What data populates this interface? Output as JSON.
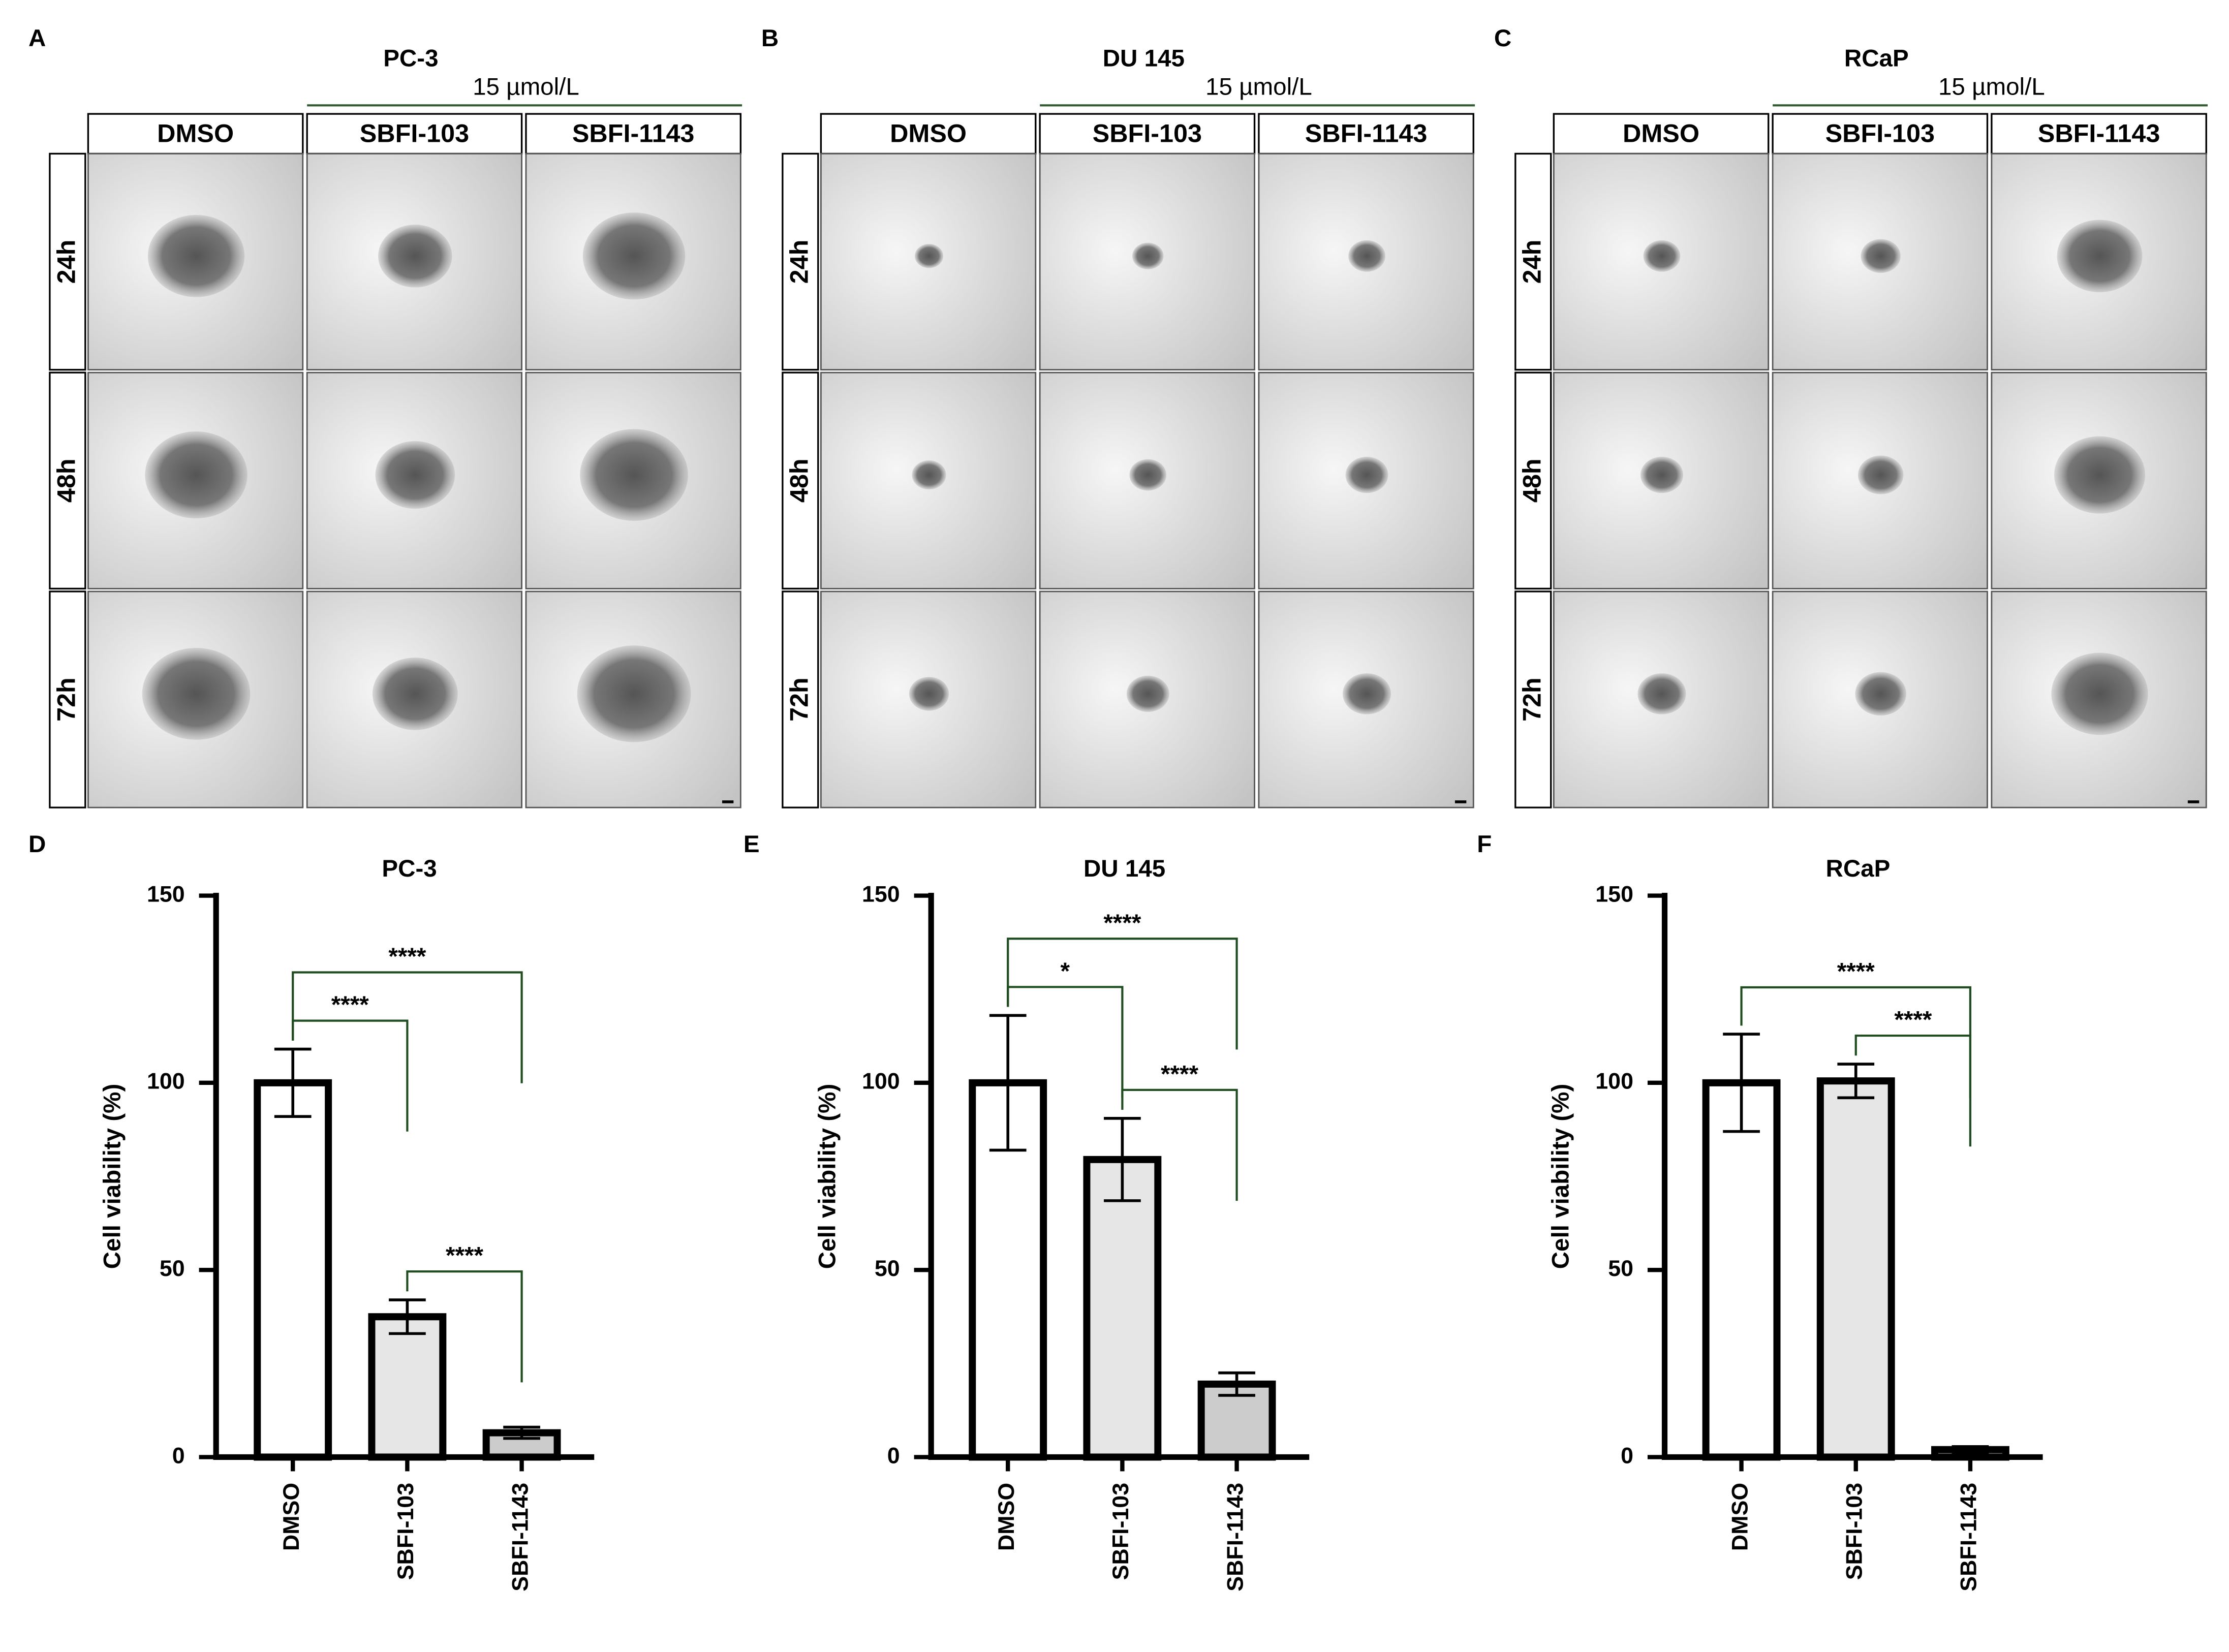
{
  "panels": [
    {
      "letter": "A",
      "cell_line": "PC-3",
      "concentration": "15 µmol/L",
      "columns": [
        "DMSO",
        "SBFI-103",
        "SBFI-1143"
      ],
      "rows": [
        "24h",
        "48h",
        "72h"
      ]
    },
    {
      "letter": "B",
      "cell_line": "DU 145",
      "concentration": "15 µmol/L",
      "columns": [
        "DMSO",
        "SBFI-103",
        "SBFI-1143"
      ],
      "rows": [
        "24h",
        "48h",
        "72h"
      ]
    },
    {
      "letter": "C",
      "cell_line": "RCaP",
      "concentration": "15 µmol/L",
      "columns": [
        "DMSO",
        "SBFI-103",
        "SBFI-1143"
      ],
      "rows": [
        "24h",
        "48h",
        "72h"
      ]
    }
  ],
  "chart_data": [
    {
      "type": "bar",
      "letter": "D",
      "title": "PC-3",
      "ylabel": "Cell viability (%)",
      "categories": [
        "DMSO",
        "SBFI-103",
        "SBFI-1143"
      ],
      "values": [
        100,
        37.5,
        6.5
      ],
      "errors": [
        9,
        4.5,
        1.5
      ],
      "colors": [
        "#ffffff",
        "#e6e6e6",
        "#cccccc"
      ],
      "ylim": [
        0,
        150
      ],
      "yticks": [
        0,
        50,
        100,
        150
      ],
      "significance": [
        {
          "pair": [
            0,
            1
          ],
          "label": "****"
        },
        {
          "pair": [
            1,
            2
          ],
          "label": "****"
        },
        {
          "pair": [
            0,
            2
          ],
          "label": "****"
        }
      ]
    },
    {
      "type": "bar",
      "letter": "E",
      "title": "DU 145",
      "ylabel": "Cell viability (%)",
      "categories": [
        "DMSO",
        "SBFI-103",
        "SBFI-1143"
      ],
      "values": [
        100,
        79.5,
        19.5
      ],
      "errors": [
        18,
        11,
        3
      ],
      "colors": [
        "#ffffff",
        "#e6e6e6",
        "#cccccc"
      ],
      "ylim": [
        0,
        150
      ],
      "yticks": [
        0,
        50,
        100,
        150
      ],
      "significance": [
        {
          "pair": [
            0,
            1
          ],
          "label": "*"
        },
        {
          "pair": [
            1,
            2
          ],
          "label": "****"
        },
        {
          "pair": [
            0,
            2
          ],
          "label": "****"
        }
      ]
    },
    {
      "type": "bar",
      "letter": "F",
      "title": "RCaP",
      "ylabel": "Cell viability (%)",
      "categories": [
        "DMSO",
        "SBFI-103",
        "SBFI-1143"
      ],
      "values": [
        100,
        100.5,
        2
      ],
      "errors": [
        13,
        4.5,
        0.8
      ],
      "colors": [
        "#ffffff",
        "#e6e6e6",
        "#cccccc"
      ],
      "ylim": [
        0,
        150
      ],
      "yticks": [
        0,
        50,
        100,
        150
      ],
      "significance": [
        {
          "pair": [
            1,
            2
          ],
          "label": "****"
        },
        {
          "pair": [
            0,
            2
          ],
          "label": "****"
        }
      ]
    }
  ]
}
